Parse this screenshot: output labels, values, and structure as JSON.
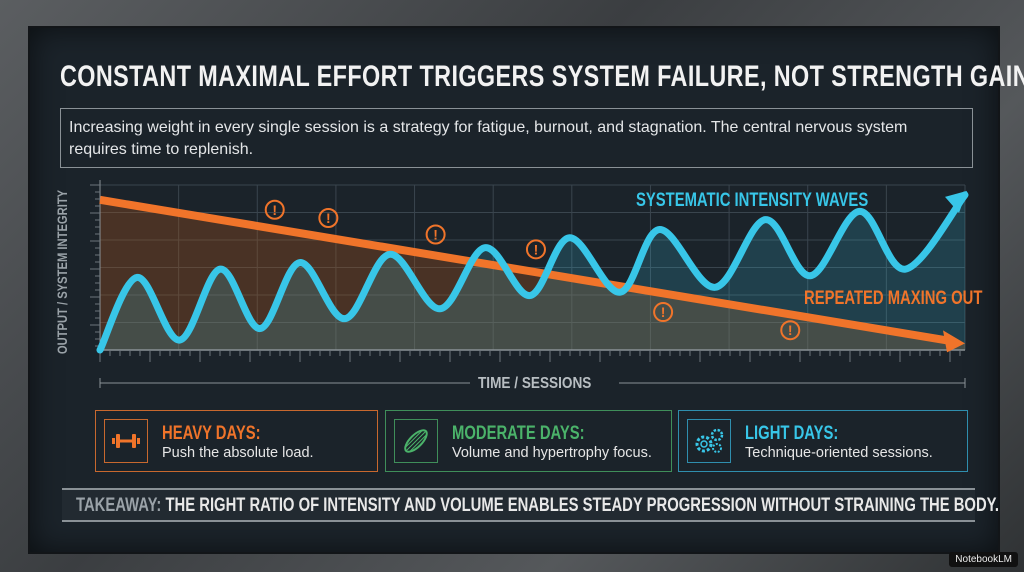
{
  "title": "CONSTANT MAXIMAL EFFORT TRIGGERS SYSTEM FAILURE, NOT STRENGTH GAINS.",
  "subtitle": "Increasing weight in every single session is a strategy for fatigue, burnout, and stagnation. The central nervous system requires time to replenish.",
  "colors": {
    "orange": "#f0742a",
    "cyan": "#38c6e8",
    "green": "#4bb36a",
    "panel": "#1b232a"
  },
  "chart_data": {
    "type": "line",
    "xlabel": "TIME / SESSIONS",
    "ylabel": "OUTPUT / SYSTEM INTEGRITY",
    "grid": true,
    "series": [
      {
        "name": "SYSTEMATIC INTENSITY WAVES",
        "color": "#38c6e8",
        "style": "oscillating, rising, ends with arrow",
        "x": [
          0,
          0.43,
          0.92,
          1.39,
          1.85,
          2.31,
          2.83,
          3.35,
          3.93,
          4.45,
          4.97,
          5.43,
          6.01,
          6.47,
          7.11,
          7.69,
          8.21,
          8.78,
          9.31,
          10
        ],
        "y": [
          0,
          4.4,
          0.6,
          4.9,
          1.3,
          5.3,
          1.9,
          5.8,
          2.5,
          6.2,
          3.3,
          6.8,
          3.5,
          7.3,
          3.8,
          7.9,
          4.5,
          8.4,
          4.9,
          9.4
        ]
      },
      {
        "name": "REPEATED MAXING OUT",
        "color": "#f0742a",
        "style": "straight declining line, ends with arrow",
        "x": [
          0,
          10
        ],
        "y": [
          9.1,
          0.4
        ]
      }
    ],
    "warning_markers": {
      "icon": "exclamation-circle-icon",
      "x": [
        2.02,
        2.64,
        3.88,
        5.04,
        6.51,
        7.98
      ],
      "y": [
        8.5,
        8.0,
        7.0,
        6.1,
        2.3,
        1.2
      ]
    }
  },
  "cards": [
    {
      "icon": "dumbbell-icon",
      "heading": "HEAVY DAYS:",
      "text": "Push the absolute load.",
      "color": "#f0742a"
    },
    {
      "icon": "muscle-icon",
      "heading": "MODERATE DAYS:",
      "text": "Volume and hypertrophy focus.",
      "color": "#4bb36a"
    },
    {
      "icon": "gears-icon",
      "heading": "LIGHT DAYS:",
      "text": "Technique-oriented sessions.",
      "color": "#38c6e8"
    }
  ],
  "takeaway": {
    "label": "TAKEAWAY:",
    "text": "THE RIGHT RATIO OF INTENSITY AND VOLUME ENABLES STEADY PROGRESSION WITHOUT STRAINING THE BODY."
  },
  "badge": "NotebookLM"
}
